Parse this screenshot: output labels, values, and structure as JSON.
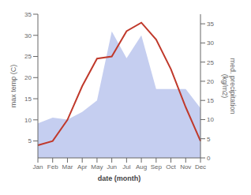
{
  "chart_data": {
    "type": "line",
    "categories": [
      "Jan",
      "Feb",
      "Mar",
      "Apr",
      "May",
      "Jun",
      "Jul",
      "Aug",
      "Sep",
      "Oct",
      "Nov",
      "Dec"
    ],
    "xlabel": "date (month)",
    "ylabel": "max temp (C)",
    "y2label": "med. precipitation\n(kg/m2)",
    "series": [
      {
        "type": "area",
        "axis": "y2",
        "color": "#c5cef0",
        "values": [
          9,
          10.5,
          10,
          12,
          15,
          33,
          26,
          32,
          18,
          18,
          18,
          13
        ]
      },
      {
        "type": "line",
        "color": "#c0392b",
        "values": [
          4,
          5,
          10,
          18,
          24.5,
          25,
          31,
          33,
          29,
          22,
          13,
          5
        ]
      }
    ],
    "ylim": [
      1,
      35
    ],
    "yticks": [
      5,
      10,
      15,
      20,
      25,
      30,
      35
    ],
    "y2lim": [
      0,
      37.5
    ],
    "y2ticks": [
      0,
      5,
      10,
      15,
      20,
      25,
      30,
      35
    ],
    "grid": false
  }
}
